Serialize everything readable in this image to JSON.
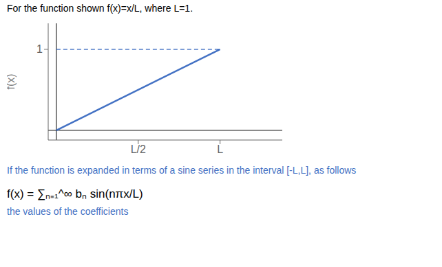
{
  "chart_data": {
    "type": "line",
    "title": "For the function shown f(x)=x/L, where L=1.",
    "ylabel": "f(x)",
    "x": [
      0,
      1
    ],
    "series": [
      {
        "color": "#4472C4",
        "values": [
          0,
          1
        ],
        "line_style": "solid"
      },
      {
        "color": "#4472C4",
        "values": [
          1,
          1
        ],
        "line_style": "dashed"
      }
    ],
    "xlim": [
      -0.05,
      1.38
    ],
    "ylim": [
      -0.12,
      1.32
    ],
    "xticks": [
      {
        "value": 0.5,
        "label": "L/2"
      },
      {
        "value": 1,
        "label": "L"
      }
    ],
    "yticks": [
      1
    ],
    "grid": false,
    "annotations": [
      {
        "text": "If the function is expanded in terms of a sine series in the interval [-L,L], as follows",
        "color": "#4472C4"
      },
      {
        "text": "f(x) = ∑ₙ₌₁^∞ bₙ sin(nπx/L)",
        "color": "#000000"
      },
      {
        "text": "the values of the coefficients",
        "color": "#4472C4"
      }
    ]
  }
}
